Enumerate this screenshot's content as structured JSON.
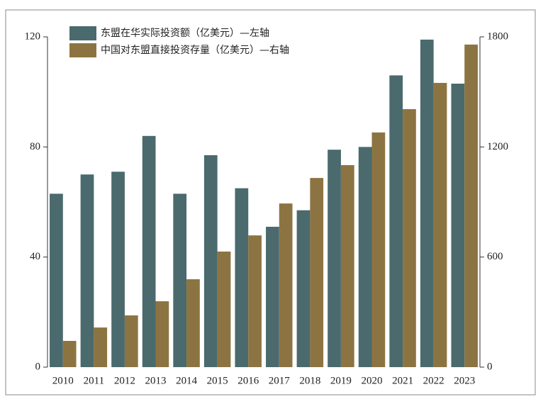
{
  "chart_data": {
    "type": "bar",
    "categories": [
      "2010",
      "2011",
      "2012",
      "2013",
      "2014",
      "2015",
      "2016",
      "2017",
      "2018",
      "2019",
      "2020",
      "2021",
      "2022",
      "2023"
    ],
    "series": [
      {
        "name": "东盟在华实际投资额（亿美元）—左轴",
        "color": "#4a6a6d",
        "values": [
          63,
          70,
          71,
          84,
          63,
          77,
          65,
          51,
          57,
          79,
          80,
          106,
          119,
          103
        ]
      },
      {
        "name": "中国对东盟直接投资存量（亿美元）—右轴",
        "color": "#8c7442",
        "axis": "y2",
        "values": [
          143,
          216,
          282,
          359,
          479,
          630,
          718,
          892,
          1031,
          1101,
          1279,
          1406,
          1549,
          1758
        ]
      }
    ],
    "ylim": [
      0,
      120
    ],
    "yticks": [
      0,
      40,
      80,
      120
    ],
    "y2lim": [
      0,
      1800
    ],
    "y2ticks": [
      0,
      600,
      1200,
      1800
    ],
    "legend": "top-left"
  }
}
